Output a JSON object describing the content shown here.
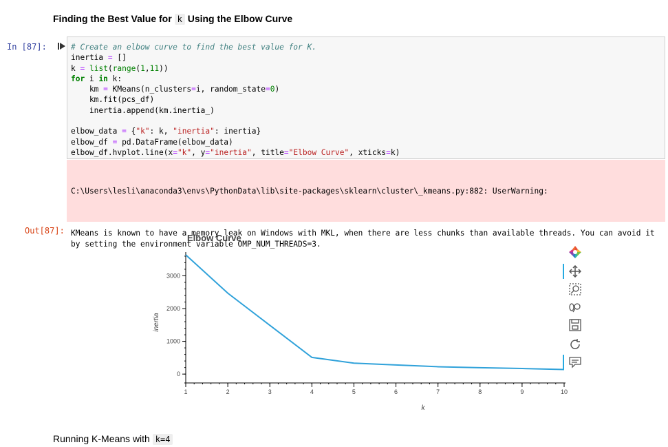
{
  "heading": {
    "prefix": "Finding the Best Value for",
    "code": "k",
    "suffix": "Using the Elbow Curve"
  },
  "cell": {
    "in_prompt": "In [87]:",
    "out_prompt": "Out[87]:",
    "code": [
      {
        "comment": "# Create an elbow curve to find the best value for K."
      },
      {
        "text": "inertia = []"
      },
      {
        "text": "k = list(range(1,11))"
      },
      {
        "text": "for i in k:"
      },
      {
        "text": "    km = KMeans(n_clusters=i, random_state=0)"
      },
      {
        "text": "    km.fit(pcs_df)"
      },
      {
        "text": "    inertia.append(km.inertia_)"
      },
      {
        "text": ""
      },
      {
        "text": "elbow_data = {\"k\": k, \"inertia\": inertia}"
      },
      {
        "text": "elbow_df = pd.DataFrame(elbow_data)"
      },
      {
        "text": "elbow_df.hvplot.line(x=\"k\", y=\"inertia\", title=\"Elbow Curve\", xticks=k)"
      }
    ],
    "stderr_path": "C:\\Users\\lesli\\anaconda3\\envs\\PythonData\\lib\\site-packages\\sklearn\\cluster\\_kmeans.py:882: UserWarning:",
    "stderr_msg": "KMeans is known to have a memory leak on Windows with MKL, when there are less chunks than available threads. You can avoid it by setting the environment variable OMP_NUM_THREADS=3."
  },
  "chart_data": {
    "type": "line",
    "title": "Elbow Curve",
    "xlabel": "k",
    "ylabel": "inertia",
    "x": [
      1,
      2,
      3,
      4,
      5,
      6,
      7,
      8,
      9,
      10
    ],
    "series": [
      {
        "values": [
          3640,
          2470,
          1490,
          510,
          335,
          280,
          225,
          195,
          170,
          140
        ]
      }
    ],
    "xticks": [
      "1",
      "2",
      "3",
      "4",
      "5",
      "6",
      "7",
      "8",
      "9",
      "10"
    ],
    "yticks": [
      "0",
      "1000",
      "2000",
      "3000"
    ],
    "xlim": [
      1,
      10
    ],
    "ylim": [
      -60,
      3640
    ],
    "grid": false,
    "color": "#30a2da"
  },
  "toolbar": {
    "icons": [
      "bokeh-logo-icon",
      "pan-icon",
      "box-zoom-icon",
      "wheel-zoom-icon",
      "save-icon",
      "reset-icon",
      "hover-icon"
    ]
  },
  "footer": {
    "prefix": "Running K-Means with",
    "code": "k=4"
  }
}
